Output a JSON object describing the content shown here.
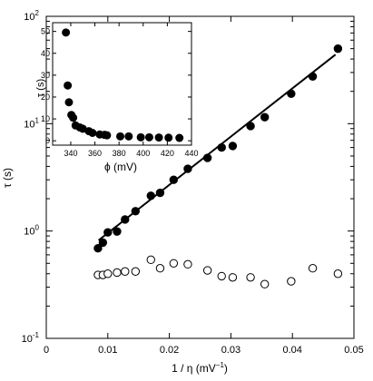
{
  "chart_data": [
    {
      "type": "scatter",
      "panel": "main",
      "title": "",
      "xlabel": "1 / η (mV",
      "xlabel_sup": "−1",
      "xlabel_close": ")",
      "ylabel": "τ (s)",
      "xscale": "linear",
      "yscale": "log",
      "xlim": [
        0,
        0.05
      ],
      "ylim": [
        0.1,
        100
      ],
      "xticks": [
        0,
        0.01,
        0.02,
        0.03,
        0.04,
        0.05
      ],
      "xtick_labels": [
        "0",
        "0.01",
        "0.02",
        "0.03",
        "0.04",
        "0.05"
      ],
      "yticks": [
        0.1,
        1,
        10,
        100
      ],
      "ytick_labels": [
        {
          "base": "10",
          "exp": "-1"
        },
        {
          "base": "10",
          "exp": "0"
        },
        {
          "base": "10",
          "exp": "1"
        },
        {
          "base": "10",
          "exp": "2"
        }
      ],
      "grid": false,
      "series": [
        {
          "marker": "filled-circle",
          "color": "#000000",
          "x": [
            0.0084,
            0.0092,
            0.01,
            0.0115,
            0.0128,
            0.0145,
            0.017,
            0.0185,
            0.0207,
            0.023,
            0.0262,
            0.0285,
            0.0303,
            0.0332,
            0.0355,
            0.0398,
            0.0433,
            0.0474
          ],
          "y": [
            0.69,
            0.78,
            0.97,
            0.99,
            1.28,
            1.53,
            2.13,
            2.27,
            3.0,
            3.8,
            4.8,
            6.0,
            6.2,
            9.5,
            11.5,
            19.0,
            27.5,
            50.0
          ]
        },
        {
          "marker": "open-circle",
          "color": "#000000",
          "x": [
            0.0084,
            0.0092,
            0.01,
            0.0115,
            0.0128,
            0.0145,
            0.017,
            0.0185,
            0.0207,
            0.023,
            0.0262,
            0.0285,
            0.0303,
            0.0332,
            0.0355,
            0.0398,
            0.0433,
            0.0474
          ],
          "y": [
            0.39,
            0.39,
            0.4,
            0.41,
            0.42,
            0.42,
            0.54,
            0.45,
            0.5,
            0.49,
            0.43,
            0.38,
            0.37,
            0.37,
            0.32,
            0.34,
            0.45,
            0.4
          ]
        }
      ],
      "fit_line": {
        "x": [
          0.0085,
          0.047
        ],
        "y": [
          0.82,
          44.0
        ]
      }
    },
    {
      "type": "scatter",
      "panel": "inset",
      "title": "",
      "xlabel": "ϕ (mV)",
      "ylabel": "τ (s)",
      "xscale": "linear",
      "yscale": "linear",
      "xlim": [
        325,
        440
      ],
      "ylim": [
        -2,
        54
      ],
      "xticks": [
        340,
        360,
        380,
        400,
        420,
        440
      ],
      "xtick_labels": [
        "340",
        "360",
        "380",
        "400",
        "420",
        "440"
      ],
      "yticks": [
        0,
        10,
        20,
        30,
        40,
        50
      ],
      "ytick_labels": [
        "0",
        "10",
        "20",
        "30",
        "40",
        "50"
      ],
      "grid": false,
      "series": [
        {
          "marker": "filled-circle",
          "color": "#000000",
          "x": [
            336,
            337.5,
            338.5,
            340.5,
            342,
            344,
            347.5,
            350,
            355,
            358,
            364,
            368,
            370,
            381,
            388,
            398,
            405,
            413,
            421,
            430
          ],
          "y": [
            49.5,
            25.3,
            17.6,
            11.8,
            10.5,
            7.0,
            6.1,
            5.5,
            4.4,
            3.6,
            2.9,
            2.7,
            2.5,
            2.0,
            2.0,
            1.6,
            1.6,
            1.5,
            1.4,
            1.3
          ]
        }
      ]
    }
  ]
}
